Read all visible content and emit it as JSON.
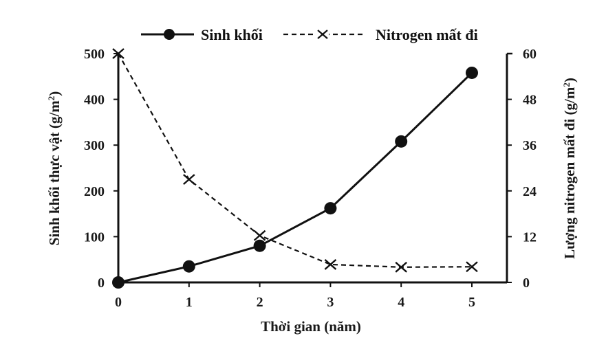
{
  "chart_data": {
    "type": "line",
    "title": "",
    "x": [
      0,
      1,
      2,
      3,
      4,
      5
    ],
    "xlabel": "Thời gian (năm)",
    "ylabel": "Sinh khối thực vật (g/m²)",
    "ylabel_right": "Lượng nitrogen mất đi (g/m²)",
    "ylim": [
      0,
      500
    ],
    "ylim_right": [
      0,
      60
    ],
    "x_ticks": [
      "0",
      "1",
      "2",
      "3",
      "4",
      "5"
    ],
    "y_ticks": [
      "0",
      "100",
      "200",
      "300",
      "400",
      "500"
    ],
    "y_ticks_right": [
      "0",
      "12",
      "24",
      "36",
      "48",
      "60"
    ],
    "grid": false,
    "legend_position": "top",
    "series": [
      {
        "name": "Sinh khối",
        "axis": "left",
        "style": "solid",
        "marker": "filled-circle",
        "values": [
          0,
          35,
          80,
          162,
          308,
          458
        ]
      },
      {
        "name": "Nitrogen mất đi",
        "axis": "right",
        "style": "dashed",
        "marker": "x",
        "values": [
          60,
          27,
          12.3,
          4.7,
          4,
          4.1
        ]
      }
    ]
  },
  "legend": {
    "items": [
      {
        "label": "Sinh khối",
        "symbol": "solid-line-filled-circle"
      },
      {
        "label": "Nitrogen mất đi",
        "symbol": "dashed-line-x"
      }
    ]
  },
  "axes": {
    "left_title_main": "Sinh khối thực vật  (g/m",
    "left_title_sup": "2",
    "left_title_end": ")",
    "right_title_main": "Lượng nitrogen mất đi (g/m",
    "right_title_sup": "2",
    "right_title_end": ")",
    "x_title": "Thời gian (năm)"
  },
  "colors": {
    "line": "#111111",
    "background": "#ffffff"
  }
}
